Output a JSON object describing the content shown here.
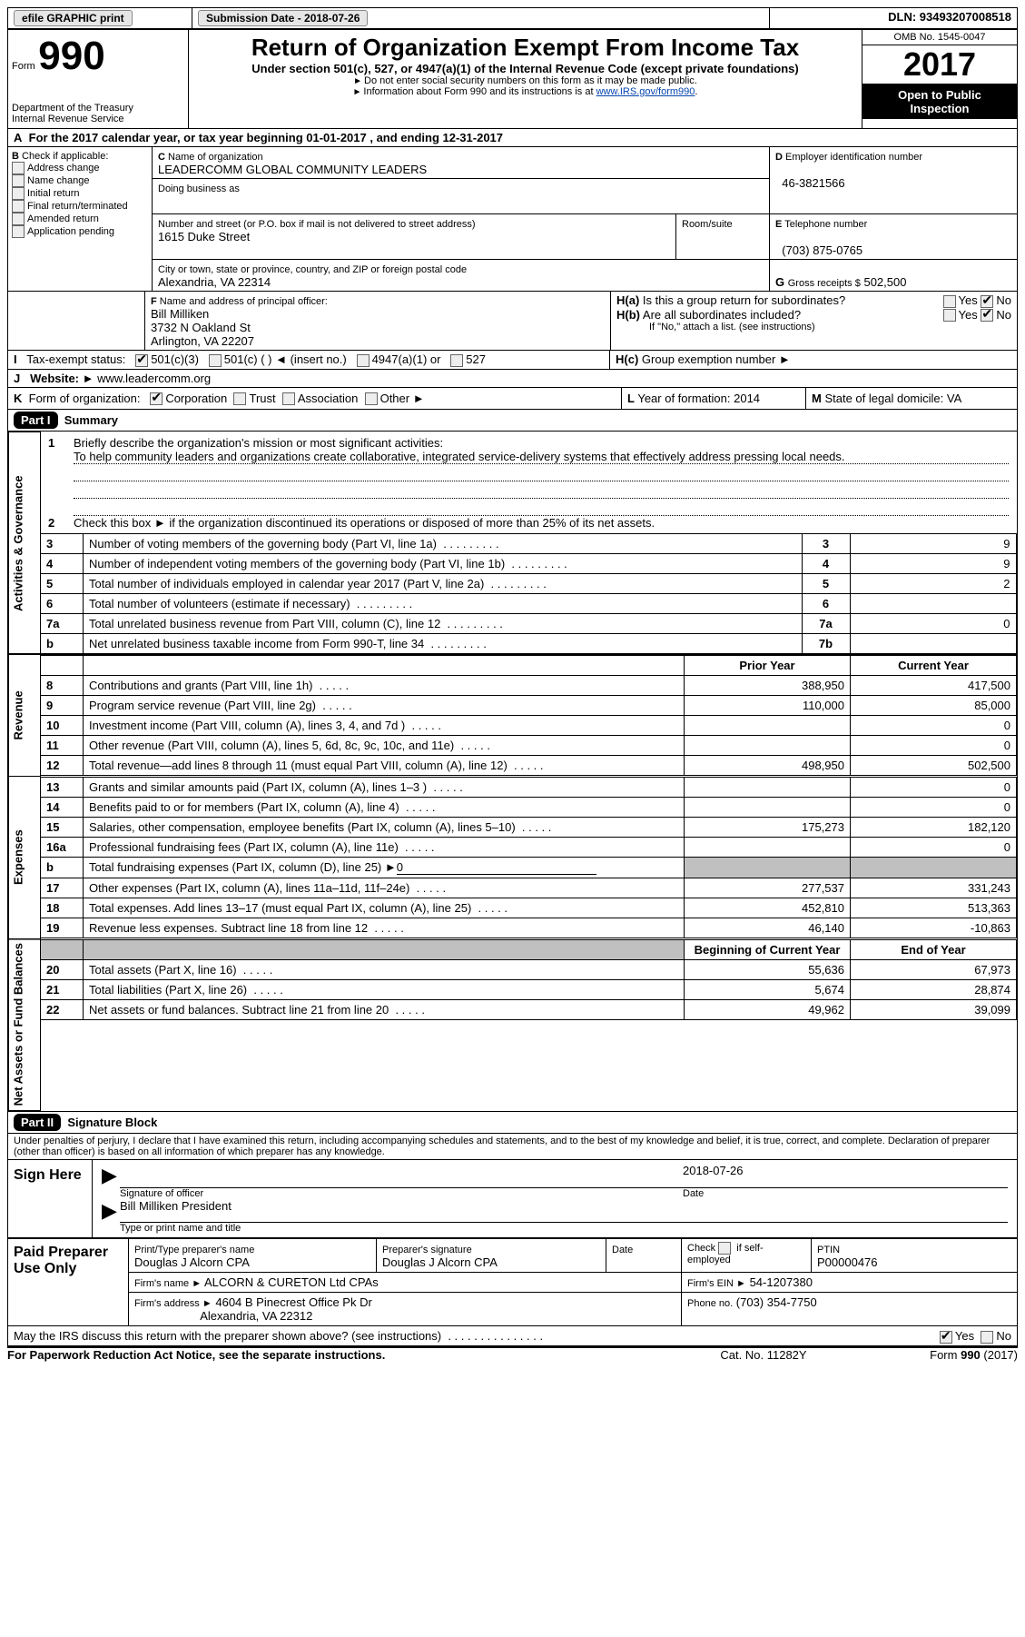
{
  "topbar": {
    "efile": "efile GRAPHIC print",
    "submission_label": "Submission Date - 2018-07-26",
    "dln": "DLN: 93493207008518"
  },
  "header": {
    "form_word": "Form",
    "form_no": "990",
    "dept1": "Department of the Treasury",
    "dept2": "Internal Revenue Service",
    "title": "Return of Organization Exempt From Income Tax",
    "sub1": "Under section 501(c), 527, or 4947(a)(1) of the Internal Revenue Code (except private foundations)",
    "sub2": "Do not enter social security numbers on this form as it may be made public.",
    "sub3_pre": "Information about Form 990 and its instructions is at ",
    "sub3_link": "www.IRS.gov/form990",
    "omb": "OMB No. 1545-0047",
    "year": "2017",
    "open1": "Open to Public",
    "open2": "Inspection"
  },
  "A": {
    "label": "A",
    "text": "For the 2017 calendar year, or tax year beginning 01-01-2017   , and ending 12-31-2017"
  },
  "B": {
    "label": "B",
    "check_label": "Check if applicable:",
    "items": [
      "Address change",
      "Name change",
      "Initial return",
      "Final return/terminated",
      "Amended return",
      "Application pending"
    ]
  },
  "C": {
    "label": "C",
    "name_label": "Name of organization",
    "name": "LEADERCOMM GLOBAL COMMUNITY LEADERS",
    "dba_label": "Doing business as",
    "street_label": "Number and street (or P.O. box if mail is not delivered to street address)",
    "room_label": "Room/suite",
    "street": "1615 Duke Street",
    "city_label": "City or town, state or province, country, and ZIP or foreign postal code",
    "city": "Alexandria, VA  22314"
  },
  "D": {
    "label": "D",
    "title": "Employer identification number",
    "value": "46-3821566"
  },
  "E": {
    "label": "E",
    "title": "Telephone number",
    "value": "(703) 875-0765"
  },
  "G": {
    "label": "G",
    "title": "Gross receipts $",
    "value": "502,500"
  },
  "F": {
    "label": "F",
    "title": "Name and address of principal officer:",
    "name": "Bill Milliken",
    "addr1": "3732 N Oakland St",
    "addr2": "Arlington, VA  22207"
  },
  "H": {
    "a_label": "H(a)",
    "a_text": "Is this a group return for subordinates?",
    "b_label": "H(b)",
    "b_text": "Are all subordinates included?",
    "b_note": "If \"No,\" attach a list. (see instructions)",
    "c_label": "H(c)",
    "c_text": "Group exemption number ►",
    "yes": "Yes",
    "no": "No"
  },
  "I": {
    "label": "I",
    "title": "Tax-exempt status:",
    "opts": [
      "501(c)(3)",
      "501(c) (  ) ◄ (insert no.)",
      "4947(a)(1) or",
      "527"
    ]
  },
  "J": {
    "label": "J",
    "title": "Website: ►",
    "value": "www.leadercomm.org"
  },
  "K": {
    "label": "K",
    "title": "Form of organization:",
    "opts": [
      "Corporation",
      "Trust",
      "Association",
      "Other ►"
    ]
  },
  "L": {
    "label": "L",
    "title": "Year of formation:",
    "value": "2014"
  },
  "M": {
    "label": "M",
    "title": "State of legal domicile:",
    "value": "VA"
  },
  "part1": {
    "label": "Part I",
    "title": "Summary",
    "q1": "Briefly describe the organization's mission or most significant activities:",
    "mission": "To help community leaders and organizations create collaborative, integrated service-delivery systems that effectively address pressing local needs.",
    "q2": "Check this box ►       if the organization discontinued its operations or disposed of more than 25% of its net assets.",
    "side_act": "Activities & Governance",
    "side_rev": "Revenue",
    "side_exp": "Expenses",
    "side_net": "Net Assets or Fund Balances",
    "prior": "Prior Year",
    "current": "Current Year",
    "boy": "Beginning of Current Year",
    "eoy": "End of Year",
    "rows_gov": [
      {
        "n": "3",
        "t": "Number of voting members of the governing body (Part VI, line 1a)",
        "box": "3",
        "v": "9"
      },
      {
        "n": "4",
        "t": "Number of independent voting members of the governing body (Part VI, line 1b)",
        "box": "4",
        "v": "9"
      },
      {
        "n": "5",
        "t": "Total number of individuals employed in calendar year 2017 (Part V, line 2a)",
        "box": "5",
        "v": "2"
      },
      {
        "n": "6",
        "t": "Total number of volunteers (estimate if necessary)",
        "box": "6",
        "v": ""
      },
      {
        "n": "7a",
        "t": "Total unrelated business revenue from Part VIII, column (C), line 12",
        "box": "7a",
        "v": "0"
      },
      {
        "n": "b",
        "t": "Net unrelated business taxable income from Form 990-T, line 34",
        "box": "7b",
        "v": ""
      }
    ],
    "rows_rev": [
      {
        "n": "8",
        "t": "Contributions and grants (Part VIII, line 1h)",
        "p": "388,950",
        "c": "417,500"
      },
      {
        "n": "9",
        "t": "Program service revenue (Part VIII, line 2g)",
        "p": "110,000",
        "c": "85,000"
      },
      {
        "n": "10",
        "t": "Investment income (Part VIII, column (A), lines 3, 4, and 7d )",
        "p": "",
        "c": "0"
      },
      {
        "n": "11",
        "t": "Other revenue (Part VIII, column (A), lines 5, 6d, 8c, 9c, 10c, and 11e)",
        "p": "",
        "c": "0"
      },
      {
        "n": "12",
        "t": "Total revenue—add lines 8 through 11 (must equal Part VIII, column (A), line 12)",
        "p": "498,950",
        "c": "502,500"
      }
    ],
    "rows_exp": [
      {
        "n": "13",
        "t": "Grants and similar amounts paid (Part IX, column (A), lines 1–3 )",
        "p": "",
        "c": "0"
      },
      {
        "n": "14",
        "t": "Benefits paid to or for members (Part IX, column (A), line 4)",
        "p": "",
        "c": "0"
      },
      {
        "n": "15",
        "t": "Salaries, other compensation, employee benefits (Part IX, column (A), lines 5–10)",
        "p": "175,273",
        "c": "182,120"
      },
      {
        "n": "16a",
        "t": "Professional fundraising fees (Part IX, column (A), line 11e)",
        "p": "",
        "c": "0"
      }
    ],
    "row16b_label": "b",
    "row16b_text": "Total fundraising expenses (Part IX, column (D), line 25) ►",
    "row16b_val": "0",
    "rows_exp2": [
      {
        "n": "17",
        "t": "Other expenses (Part IX, column (A), lines 11a–11d, 11f–24e)",
        "p": "277,537",
        "c": "331,243"
      },
      {
        "n": "18",
        "t": "Total expenses. Add lines 13–17 (must equal Part IX, column (A), line 25)",
        "p": "452,810",
        "c": "513,363"
      },
      {
        "n": "19",
        "t": "Revenue less expenses. Subtract line 18 from line 12",
        "p": "46,140",
        "c": "-10,863"
      }
    ],
    "rows_net": [
      {
        "n": "20",
        "t": "Total assets (Part X, line 16)",
        "p": "55,636",
        "c": "67,973"
      },
      {
        "n": "21",
        "t": "Total liabilities (Part X, line 26)",
        "p": "5,674",
        "c": "28,874"
      },
      {
        "n": "22",
        "t": "Net assets or fund balances. Subtract line 21 from line 20",
        "p": "49,962",
        "c": "39,099"
      }
    ]
  },
  "part2": {
    "label": "Part II",
    "title": "Signature Block",
    "declaration": "Under penalties of perjury, I declare that I have examined this return, including accompanying schedules and statements, and to the best of my knowledge and belief, it is true, correct, and complete. Declaration of preparer (other than officer) is based on all information of which preparer has any knowledge.",
    "sign_here": "Sign Here",
    "sig_officer": "Signature of officer",
    "date_label": "Date",
    "sig_date": "2018-07-26",
    "officer_name": "Bill Milliken  President",
    "type_name": "Type or print name and title",
    "paid": "Paid Preparer Use Only",
    "prep_name_label": "Print/Type preparer's name",
    "prep_name": "Douglas J Alcorn CPA",
    "prep_sig_label": "Preparer's signature",
    "prep_sig": "Douglas J Alcorn CPA",
    "prep_date_label": "Date",
    "check_self": "Check        if self-employed",
    "ptin_label": "PTIN",
    "ptin": "P00000476",
    "firm_name_label": "Firm's name    ►",
    "firm_name": "ALCORN & CURETON Ltd CPAs",
    "firm_ein_label": "Firm's EIN ►",
    "firm_ein": "54-1207380",
    "firm_addr_label": "Firm's address ►",
    "firm_addr1": "4604 B Pinecrest Office Pk Dr",
    "firm_addr2": "Alexandria, VA  22312",
    "phone_label": "Phone no.",
    "phone": "(703) 354-7750",
    "discuss": "May the IRS discuss this return with the preparer shown above? (see instructions)",
    "yes": "Yes",
    "no": "No"
  },
  "footer": {
    "pra": "For Paperwork Reduction Act Notice, see the separate instructions.",
    "cat": "Cat. No. 11282Y",
    "form": "Form 990 (2017)"
  }
}
